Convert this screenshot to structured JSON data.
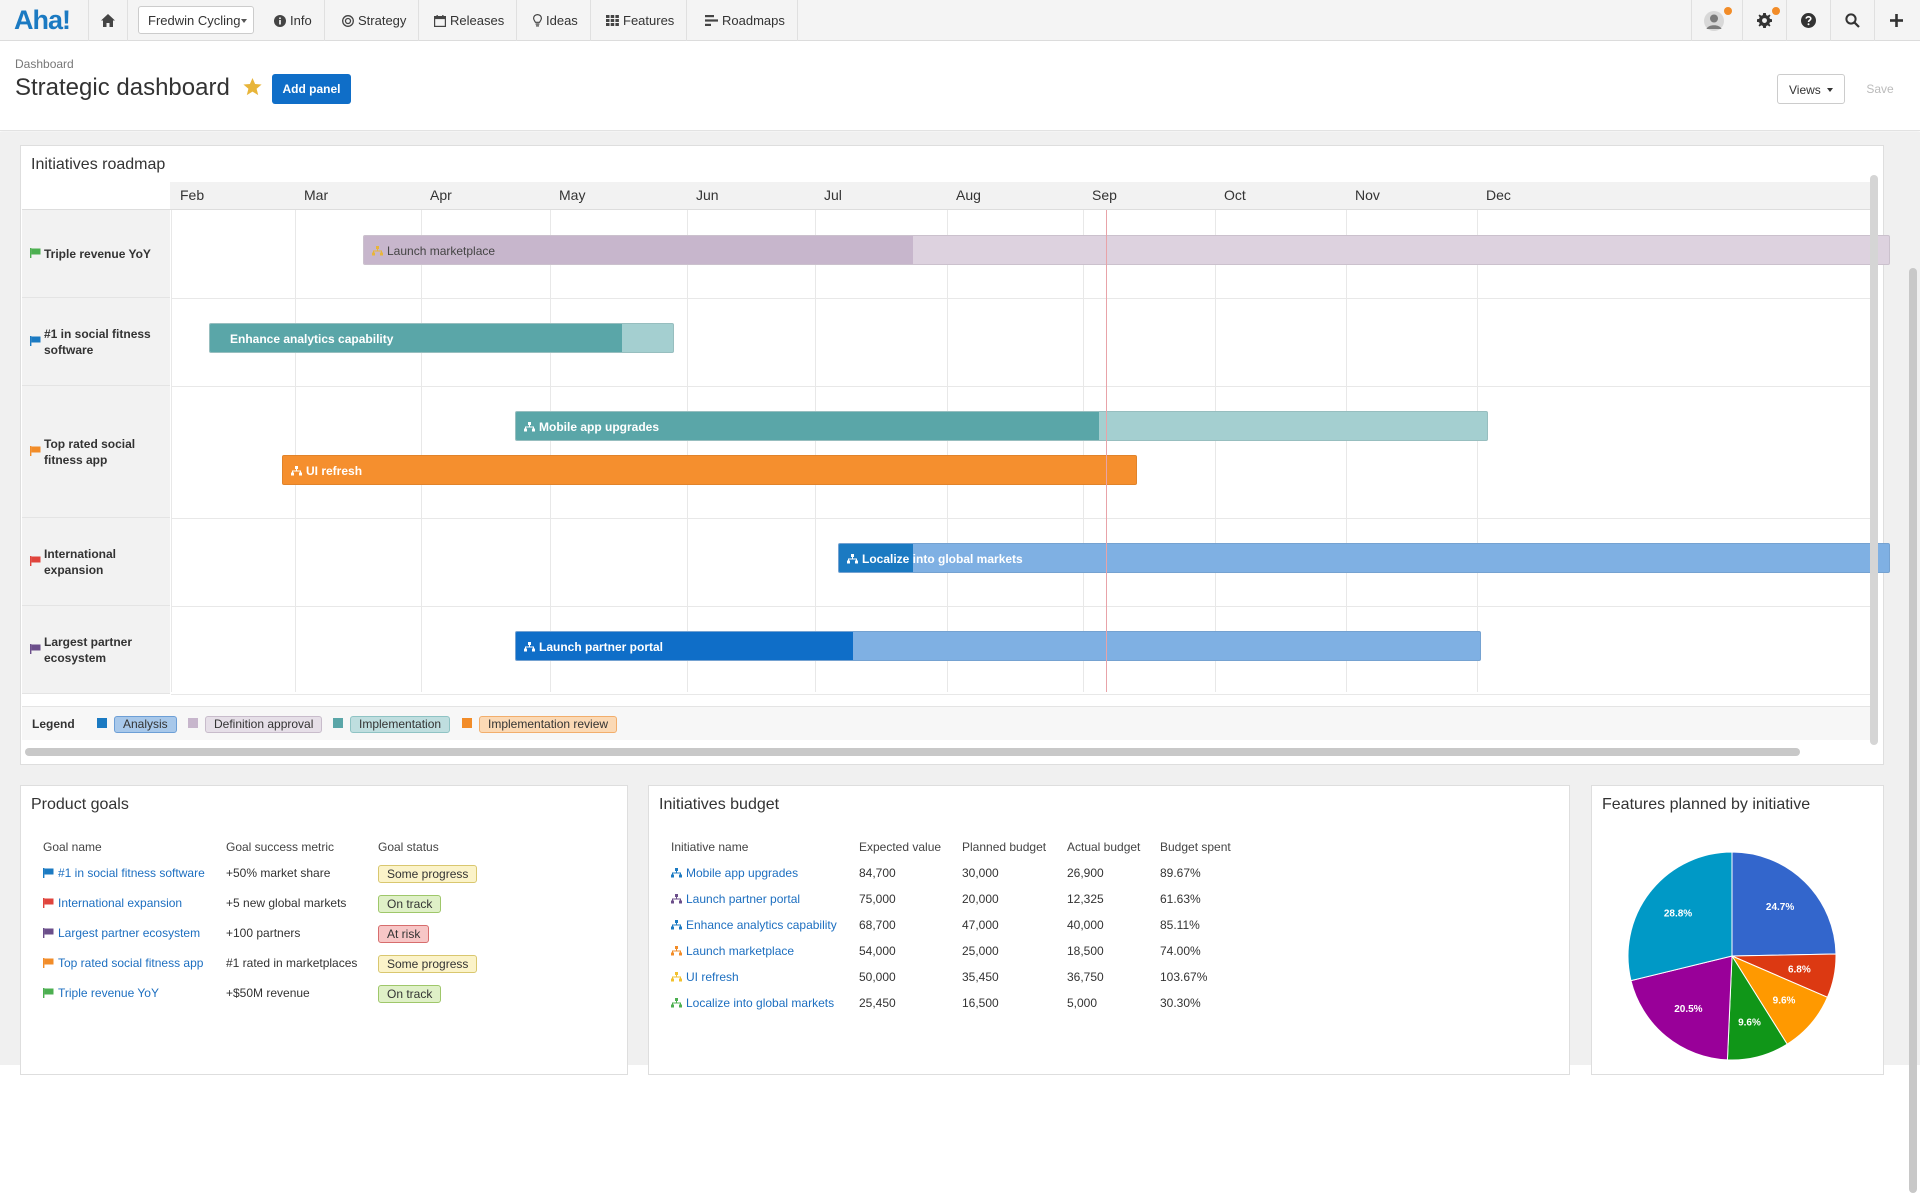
{
  "app": {
    "logo": "Aha!",
    "workspace": "Fredwin Cycling",
    "nav": [
      {
        "label": "Info",
        "icon": "info-icon"
      },
      {
        "label": "Strategy",
        "icon": "target-icon"
      },
      {
        "label": "Releases",
        "icon": "calendar-icon"
      },
      {
        "label": "Ideas",
        "icon": "lightbulb-icon"
      },
      {
        "label": "Features",
        "icon": "grid-icon"
      },
      {
        "label": "Roadmaps",
        "icon": "roadmap-icon"
      }
    ],
    "accent": "#0f6ec8"
  },
  "header": {
    "breadcrumb": "Dashboard",
    "title": "Strategic dashboard",
    "add_panel": "Add panel",
    "views": "Views",
    "save": "Save"
  },
  "roadmap": {
    "title": "Initiatives roadmap",
    "months": [
      "Feb",
      "Mar",
      "Apr",
      "May",
      "Jun",
      "Jul",
      "Aug",
      "Sep",
      "Oct",
      "Nov",
      "Dec"
    ],
    "lanes": [
      {
        "label": "Triple revenue YoY",
        "flag_color": "#4caf50"
      },
      {
        "label": "#1 in social fitness software",
        "flag_color": "#1b7ac2"
      },
      {
        "label": "Top rated social fitness app",
        "flag_color": "#f28c28"
      },
      {
        "label": "International expansion",
        "flag_color": "#e0443c"
      },
      {
        "label": "Largest partner ecosystem",
        "flag_color": "#6b4e8a"
      }
    ],
    "bars": [
      {
        "label": "Launch marketplace",
        "dark": "#c7b6cc",
        "light": "#ddd2df",
        "text": "#444",
        "progress": 0.36
      },
      {
        "label": "Enhance analytics capability",
        "dark": "#5aa6a8",
        "light": "#a4cfd0",
        "text": "#fff",
        "progress": 0.89
      },
      {
        "label": "Mobile app upgrades",
        "dark": "#5aa6a8",
        "light": "#a4cfd0",
        "text": "#fff",
        "progress": 0.6
      },
      {
        "label": "UI refresh",
        "dark": "#f58f2e",
        "light": "#f58f2e",
        "text": "#fff",
        "progress": 1.0
      },
      {
        "label": "Localize into global markets",
        "dark": "#1b7ac2",
        "light": "#7fb0e3",
        "text": "#fff",
        "progress": 0.07
      },
      {
        "label": "Launch partner portal",
        "dark": "#0f6ec8",
        "light": "#7fb0e3",
        "text": "#fff",
        "progress": 0.35
      }
    ],
    "legend": {
      "title": "Legend",
      "items": [
        {
          "label": "Analysis",
          "color": "#1b7ac2",
          "bg": "#a8c8ea",
          "border": "#6d9fd6"
        },
        {
          "label": "Definition approval",
          "color": "#c7b6cc",
          "bg": "#e6dfe8",
          "border": "#c8bccb"
        },
        {
          "label": "Implementation",
          "color": "#5aa6a8",
          "bg": "#bfdedf",
          "border": "#8fc3c4"
        },
        {
          "label": "Implementation review",
          "color": "#f28c28",
          "bg": "#fbd9b5",
          "border": "#f2ae6c"
        }
      ]
    }
  },
  "goals": {
    "title": "Product goals",
    "columns": [
      "Goal name",
      "Goal success metric",
      "Goal status"
    ],
    "rows": [
      {
        "name": "#1 in social fitness software",
        "flag": "#1b7ac2",
        "metric": "+50% market share",
        "status": "Some progress",
        "status_bg": "#fbf3c9",
        "status_border": "#d9c76f"
      },
      {
        "name": "International expansion",
        "flag": "#e0443c",
        "metric": "+5 new global markets",
        "status": "On track",
        "status_bg": "#dff0c7",
        "status_border": "#9fc76a"
      },
      {
        "name": "Largest partner ecosystem",
        "flag": "#6b4e8a",
        "metric": "+100 partners",
        "status": "At risk",
        "status_bg": "#f7c6c6",
        "status_border": "#d76d6d"
      },
      {
        "name": "Top rated social fitness app",
        "flag": "#f28c28",
        "metric": "#1 rated in marketplaces",
        "status": "Some progress",
        "status_bg": "#fbf3c9",
        "status_border": "#d9c76f"
      },
      {
        "name": "Triple revenue YoY",
        "flag": "#4caf50",
        "metric": "+$50M revenue",
        "status": "On track",
        "status_bg": "#dff0c7",
        "status_border": "#9fc76a"
      }
    ]
  },
  "budget": {
    "title": "Initiatives budget",
    "columns": [
      "Initiative name",
      "Expected value",
      "Planned budget",
      "Actual budget",
      "Budget spent"
    ],
    "rows": [
      {
        "name": "Mobile app upgrades",
        "icon_color": "#1b7ac2",
        "expected": "84,700",
        "planned": "30,000",
        "actual": "26,900",
        "spent": "89.67%"
      },
      {
        "name": "Launch partner portal",
        "icon_color": "#6b4e8a",
        "expected": "75,000",
        "planned": "20,000",
        "actual": "12,325",
        "spent": "61.63%"
      },
      {
        "name": "Enhance analytics capability",
        "icon_color": "#1b7ac2",
        "expected": "68,700",
        "planned": "47,000",
        "actual": "40,000",
        "spent": "85.11%"
      },
      {
        "name": "Launch marketplace",
        "icon_color": "#f28c28",
        "expected": "54,000",
        "planned": "25,000",
        "actual": "18,500",
        "spent": "74.00%"
      },
      {
        "name": "UI refresh",
        "icon_color": "#f2c12e",
        "expected": "50,000",
        "planned": "35,450",
        "actual": "36,750",
        "spent": "103.67%"
      },
      {
        "name": "Localize into global markets",
        "icon_color": "#4caf50",
        "expected": "25,450",
        "planned": "16,500",
        "actual": "5,000",
        "spent": "30.30%"
      }
    ]
  },
  "features_pie": {
    "title": "Features planned by initiative"
  },
  "chart_data": {
    "type": "pie",
    "title": "Features planned by initiative",
    "slices": [
      {
        "value": 24.7,
        "label": "24.7%",
        "color": "#3366cc"
      },
      {
        "value": 6.8,
        "label": "6.8%",
        "color": "#dc3912"
      },
      {
        "value": 9.6,
        "label": "9.6%",
        "color": "#ff9900"
      },
      {
        "value": 9.6,
        "label": "9.6%",
        "color": "#109618"
      },
      {
        "value": 20.5,
        "label": "20.5%",
        "color": "#990099"
      },
      {
        "value": 28.8,
        "label": "28.8%",
        "color": "#0099c6"
      }
    ]
  }
}
